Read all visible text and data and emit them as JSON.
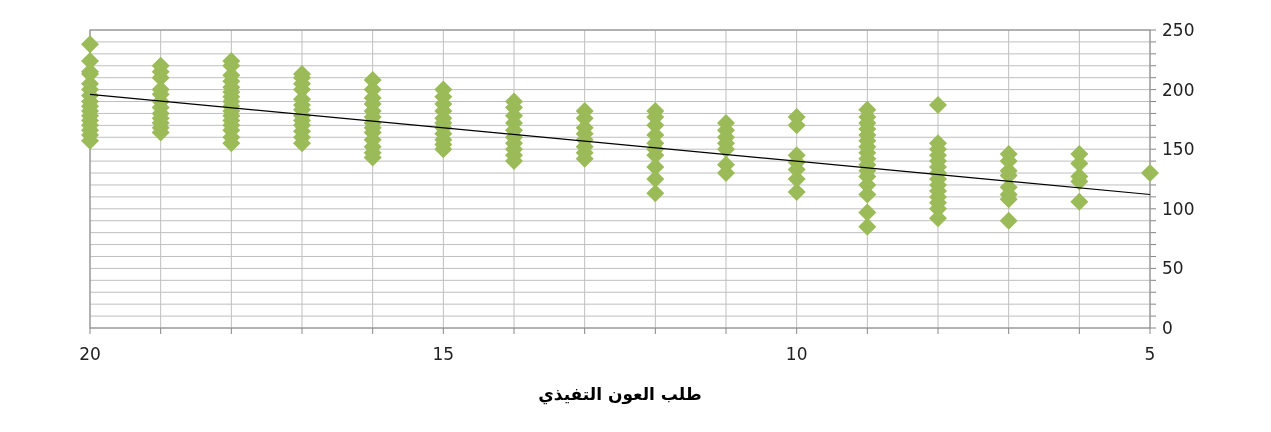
{
  "chart_data": {
    "type": "scatter",
    "xlabel": "طلب العون التفيذي",
    "grid": true,
    "xlim": [
      20,
      5
    ],
    "ylim": [
      0,
      250
    ],
    "xticks": [
      20,
      {
        "value": 19,
        "label": null
      },
      {
        "value": 18,
        "label": null
      },
      {
        "value": 17,
        "label": null
      },
      {
        "value": 16,
        "label": null
      },
      15,
      {
        "value": 14,
        "label": null
      },
      {
        "value": 13,
        "label": null
      },
      {
        "value": 12,
        "label": null
      },
      {
        "value": 11,
        "label": null
      },
      10,
      {
        "value": 9,
        "label": null
      },
      {
        "value": 8,
        "label": null
      },
      {
        "value": 7,
        "label": null
      },
      {
        "value": 6,
        "label": null
      },
      5
    ],
    "yticks": [
      0,
      {
        "value": 10,
        "label": null
      },
      {
        "value": 20,
        "label": null
      },
      {
        "value": 30,
        "label": null
      },
      {
        "value": 40,
        "label": null
      },
      50,
      {
        "value": 60,
        "label": null
      },
      {
        "value": 70,
        "label": null
      },
      {
        "value": 80,
        "label": null
      },
      {
        "value": 90,
        "label": null
      },
      100,
      {
        "value": 110,
        "label": null
      },
      {
        "value": 120,
        "label": null
      },
      {
        "value": 130,
        "label": null
      },
      {
        "value": 140,
        "label": null
      },
      150,
      {
        "value": 160,
        "label": null
      },
      {
        "value": 170,
        "label": null
      },
      {
        "value": 180,
        "label": null
      },
      {
        "value": 190,
        "label": null
      },
      200,
      {
        "value": 210,
        "label": null
      },
      {
        "value": 220,
        "label": null
      },
      {
        "value": 230,
        "label": null
      },
      {
        "value": 240,
        "label": null
      },
      250
    ],
    "series": [
      {
        "color": "#9bbb59",
        "marker": "diamond",
        "x": [
          20,
          20,
          20,
          20,
          20,
          20,
          20,
          20,
          20,
          20,
          20,
          20,
          20,
          20,
          20,
          20,
          19,
          19,
          19,
          19,
          19,
          19,
          19,
          19,
          19,
          19,
          19,
          19,
          18,
          18,
          18,
          18,
          18,
          18,
          18,
          18,
          18,
          18,
          18,
          18,
          18,
          18,
          18,
          18,
          17,
          17,
          17,
          17,
          17,
          17,
          17,
          17,
          17,
          17,
          17,
          17,
          17,
          16,
          16,
          16,
          16,
          16,
          16,
          16,
          16,
          16,
          16,
          16,
          16,
          16,
          15,
          15,
          15,
          15,
          15,
          15,
          15,
          15,
          15,
          15,
          15,
          14,
          14,
          14,
          14,
          14,
          14,
          14,
          14,
          14,
          14,
          13,
          13,
          13,
          13,
          13,
          13,
          13,
          13,
          12,
          12,
          12,
          12,
          12,
          12,
          12,
          12,
          12,
          12,
          11,
          11,
          11,
          11,
          11,
          11,
          11,
          10,
          10,
          10,
          10,
          10,
          10,
          10,
          9,
          9,
          9,
          9,
          9,
          9,
          9,
          9,
          9,
          9,
          9,
          9,
          9,
          9,
          9,
          9,
          8,
          8,
          8,
          8,
          8,
          8,
          8,
          8,
          8,
          8,
          8,
          8,
          8,
          8,
          7,
          7,
          7,
          7,
          7,
          7,
          7,
          7,
          6,
          6,
          6,
          6,
          6,
          5
        ],
        "values": [
          238,
          224,
          215,
          213,
          205,
          200,
          195,
          190,
          186,
          182,
          178,
          174,
          170,
          166,
          162,
          157,
          220,
          215,
          210,
          200,
          196,
          190,
          185,
          180,
          176,
          172,
          168,
          164,
          224,
          220,
          212,
          207,
          202,
          198,
          194,
          190,
          186,
          182,
          178,
          174,
          170,
          166,
          160,
          155,
          213,
          210,
          205,
          200,
          192,
          187,
          183,
          178,
          174,
          170,
          165,
          160,
          155,
          208,
          200,
          193,
          188,
          182,
          177,
          172,
          168,
          164,
          158,
          152,
          147,
          143,
          200,
          194,
          188,
          182,
          176,
          172,
          168,
          163,
          158,
          154,
          150,
          190,
          185,
          178,
          172,
          166,
          160,
          155,
          150,
          145,
          140,
          182,
          176,
          168,
          163,
          158,
          152,
          147,
          142,
          182,
          177,
          170,
          162,
          155,
          150,
          145,
          135,
          125,
          113,
          172,
          166,
          160,
          155,
          150,
          137,
          130,
          177,
          170,
          145,
          139,
          133,
          125,
          114,
          183,
          177,
          172,
          167,
          162,
          157,
          152,
          147,
          142,
          137,
          132,
          127,
          120,
          112,
          97,
          85,
          187,
          155,
          150,
          145,
          140,
          135,
          130,
          125,
          120,
          115,
          110,
          105,
          100,
          92,
          146,
          140,
          132,
          128,
          118,
          112,
          108,
          90,
          146,
          138,
          127,
          123,
          106,
          130
        ]
      },
      {
        "type": "line",
        "color": "#000000",
        "x": [
          20,
          5
        ],
        "values": [
          196,
          112
        ]
      }
    ]
  }
}
